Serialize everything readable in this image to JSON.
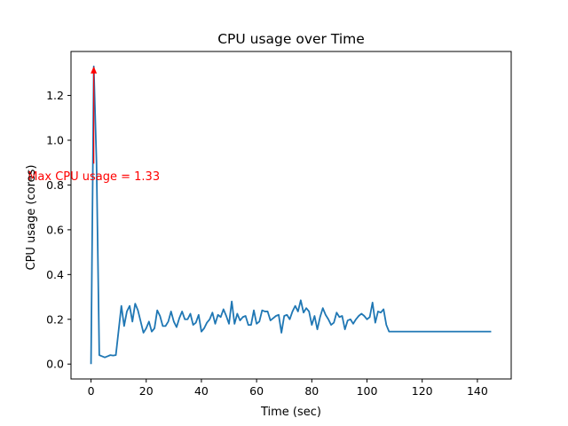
{
  "chart_data": {
    "type": "line",
    "title": "CPU usage over Time",
    "xlabel": "Time (sec)",
    "ylabel": "CPU usage (cores)",
    "xlim": [
      -7.25,
      152.25
    ],
    "ylim": [
      -0.0665,
      1.3965
    ],
    "xticks": [
      0,
      20,
      40,
      60,
      80,
      100,
      120,
      140
    ],
    "yticks": [
      0.0,
      0.2,
      0.4,
      0.6,
      0.8,
      1.0,
      1.2
    ],
    "xtick_labels": [
      "0",
      "20",
      "40",
      "60",
      "80",
      "100",
      "120",
      "140"
    ],
    "ytick_labels": [
      "0.0",
      "0.2",
      "0.4",
      "0.6",
      "0.8",
      "1.0",
      "1.2"
    ],
    "grid": false,
    "series": [
      {
        "color": "#1f77b4",
        "x": [
          0,
          1,
          2,
          3,
          4,
          5,
          6,
          7,
          8,
          9,
          10,
          11,
          12,
          13,
          14,
          15,
          16,
          17,
          18,
          19,
          20,
          21,
          22,
          23,
          24,
          25,
          26,
          27,
          28,
          29,
          30,
          31,
          32,
          33,
          34,
          35,
          36,
          37,
          38,
          39,
          40,
          41,
          42,
          43,
          44,
          45,
          46,
          47,
          48,
          49,
          50,
          51,
          52,
          53,
          54,
          55,
          56,
          57,
          58,
          59,
          60,
          61,
          62,
          63,
          64,
          65,
          66,
          67,
          68,
          69,
          70,
          71,
          72,
          73,
          74,
          75,
          76,
          77,
          78,
          79,
          80,
          81,
          82,
          83,
          84,
          85,
          86,
          87,
          88,
          89,
          90,
          91,
          92,
          93,
          94,
          95,
          96,
          97,
          98,
          99,
          100,
          101,
          102,
          103,
          104,
          105,
          106,
          107,
          108,
          109,
          110,
          111,
          112,
          113,
          114,
          115,
          116,
          117,
          118,
          119,
          120,
          121,
          122,
          123,
          124,
          125,
          126,
          127,
          128,
          129,
          130,
          131,
          132,
          133,
          134,
          135,
          136,
          137,
          138,
          139,
          140,
          141,
          142,
          143,
          144,
          145
        ],
        "y": [
          0.0,
          1.33,
          0.9,
          0.04,
          0.035,
          0.03,
          0.035,
          0.04,
          0.038,
          0.04,
          0.15,
          0.26,
          0.17,
          0.235,
          0.26,
          0.19,
          0.27,
          0.24,
          0.19,
          0.14,
          0.16,
          0.19,
          0.145,
          0.16,
          0.24,
          0.215,
          0.17,
          0.17,
          0.19,
          0.235,
          0.19,
          0.165,
          0.205,
          0.235,
          0.2,
          0.2,
          0.225,
          0.175,
          0.185,
          0.22,
          0.145,
          0.16,
          0.185,
          0.2,
          0.23,
          0.18,
          0.22,
          0.21,
          0.245,
          0.215,
          0.18,
          0.28,
          0.18,
          0.225,
          0.195,
          0.21,
          0.215,
          0.175,
          0.175,
          0.24,
          0.18,
          0.19,
          0.24,
          0.235,
          0.235,
          0.195,
          0.205,
          0.215,
          0.22,
          0.14,
          0.215,
          0.22,
          0.2,
          0.235,
          0.26,
          0.235,
          0.285,
          0.23,
          0.25,
          0.235,
          0.175,
          0.215,
          0.155,
          0.21,
          0.25,
          0.22,
          0.2,
          0.175,
          0.185,
          0.23,
          0.21,
          0.215,
          0.155,
          0.195,
          0.2,
          0.18,
          0.2,
          0.215,
          0.225,
          0.215,
          0.2,
          0.21,
          0.275,
          0.185,
          0.235,
          0.23,
          0.245,
          0.175,
          0.145,
          0.145,
          0.145,
          0.145,
          0.145,
          0.145,
          0.145,
          0.145,
          0.145,
          0.145,
          0.145,
          0.145,
          0.145,
          0.145,
          0.145,
          0.145,
          0.145,
          0.145,
          0.145,
          0.145,
          0.145,
          0.145,
          0.145,
          0.145,
          0.145,
          0.145,
          0.145,
          0.145,
          0.145,
          0.145,
          0.145,
          0.145,
          0.145,
          0.145,
          0.145,
          0.145,
          0.145,
          0.145
        ]
      }
    ],
    "annotation": {
      "text": "Max CPU usage = 1.33",
      "color": "#ff0000",
      "point": [
        1,
        1.33
      ],
      "text_position": [
        1,
        0.84
      ]
    }
  }
}
